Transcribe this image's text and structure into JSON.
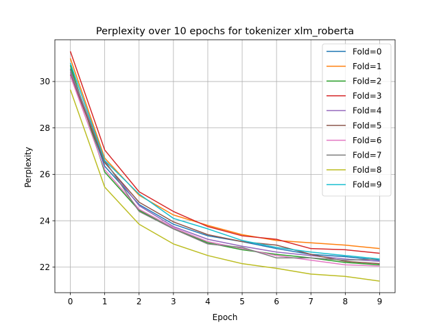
{
  "chart_data": {
    "type": "line",
    "title": "Perplexity over 10 epochs for tokenizer xlm_roberta",
    "xlabel": "Epoch",
    "ylabel": "Perplexity",
    "x": [
      0,
      1,
      2,
      3,
      4,
      5,
      6,
      7,
      8,
      9
    ],
    "xticks": [
      "0",
      "1",
      "2",
      "3",
      "4",
      "5",
      "6",
      "7",
      "8",
      "9"
    ],
    "yticks": [
      22,
      24,
      26,
      28,
      30
    ],
    "xlim": [
      -0.45,
      9.45
    ],
    "ylim": [
      20.9,
      31.8
    ],
    "grid": true,
    "legend_position": "top-right",
    "series": [
      {
        "name": "Fold=0",
        "color": "#1f77b4",
        "values": [
          30.55,
          26.35,
          24.7,
          23.85,
          23.35,
          23.1,
          22.8,
          22.55,
          22.45,
          22.3
        ]
      },
      {
        "name": "Fold=1",
        "color": "#ff7f0e",
        "values": [
          31.0,
          26.7,
          25.1,
          24.25,
          23.8,
          23.4,
          23.15,
          23.05,
          22.95,
          22.8
        ]
      },
      {
        "name": "Fold=2",
        "color": "#2ca02c",
        "values": [
          30.7,
          26.1,
          24.45,
          23.65,
          23.05,
          22.75,
          22.55,
          22.4,
          22.2,
          22.1
        ]
      },
      {
        "name": "Fold=3",
        "color": "#d62728",
        "values": [
          31.3,
          27.05,
          25.25,
          24.4,
          23.75,
          23.35,
          23.2,
          22.8,
          22.75,
          22.6
        ]
      },
      {
        "name": "Fold=4",
        "color": "#9467bd",
        "values": [
          30.4,
          26.55,
          24.65,
          23.75,
          23.2,
          22.9,
          22.65,
          22.5,
          22.35,
          22.25
        ]
      },
      {
        "name": "Fold=5",
        "color": "#8c564b",
        "values": [
          30.3,
          26.5,
          24.8,
          23.95,
          23.4,
          23.1,
          22.95,
          22.55,
          22.25,
          22.15
        ]
      },
      {
        "name": "Fold=6",
        "color": "#e377c2",
        "values": [
          30.25,
          26.2,
          24.5,
          23.7,
          23.1,
          22.8,
          22.5,
          22.3,
          22.1,
          22.05
        ]
      },
      {
        "name": "Fold=7",
        "color": "#7f7f7f",
        "values": [
          30.5,
          26.6,
          24.4,
          23.65,
          23.0,
          22.85,
          22.4,
          22.4,
          22.3,
          22.35
        ]
      },
      {
        "name": "Fold=8",
        "color": "#bcbd22",
        "values": [
          29.65,
          25.45,
          23.85,
          23.0,
          22.5,
          22.15,
          21.95,
          21.7,
          21.6,
          21.4
        ]
      },
      {
        "name": "Fold=9",
        "color": "#17becf",
        "values": [
          30.8,
          26.6,
          25.15,
          24.1,
          23.65,
          23.15,
          22.85,
          22.65,
          22.5,
          22.35
        ]
      }
    ]
  }
}
